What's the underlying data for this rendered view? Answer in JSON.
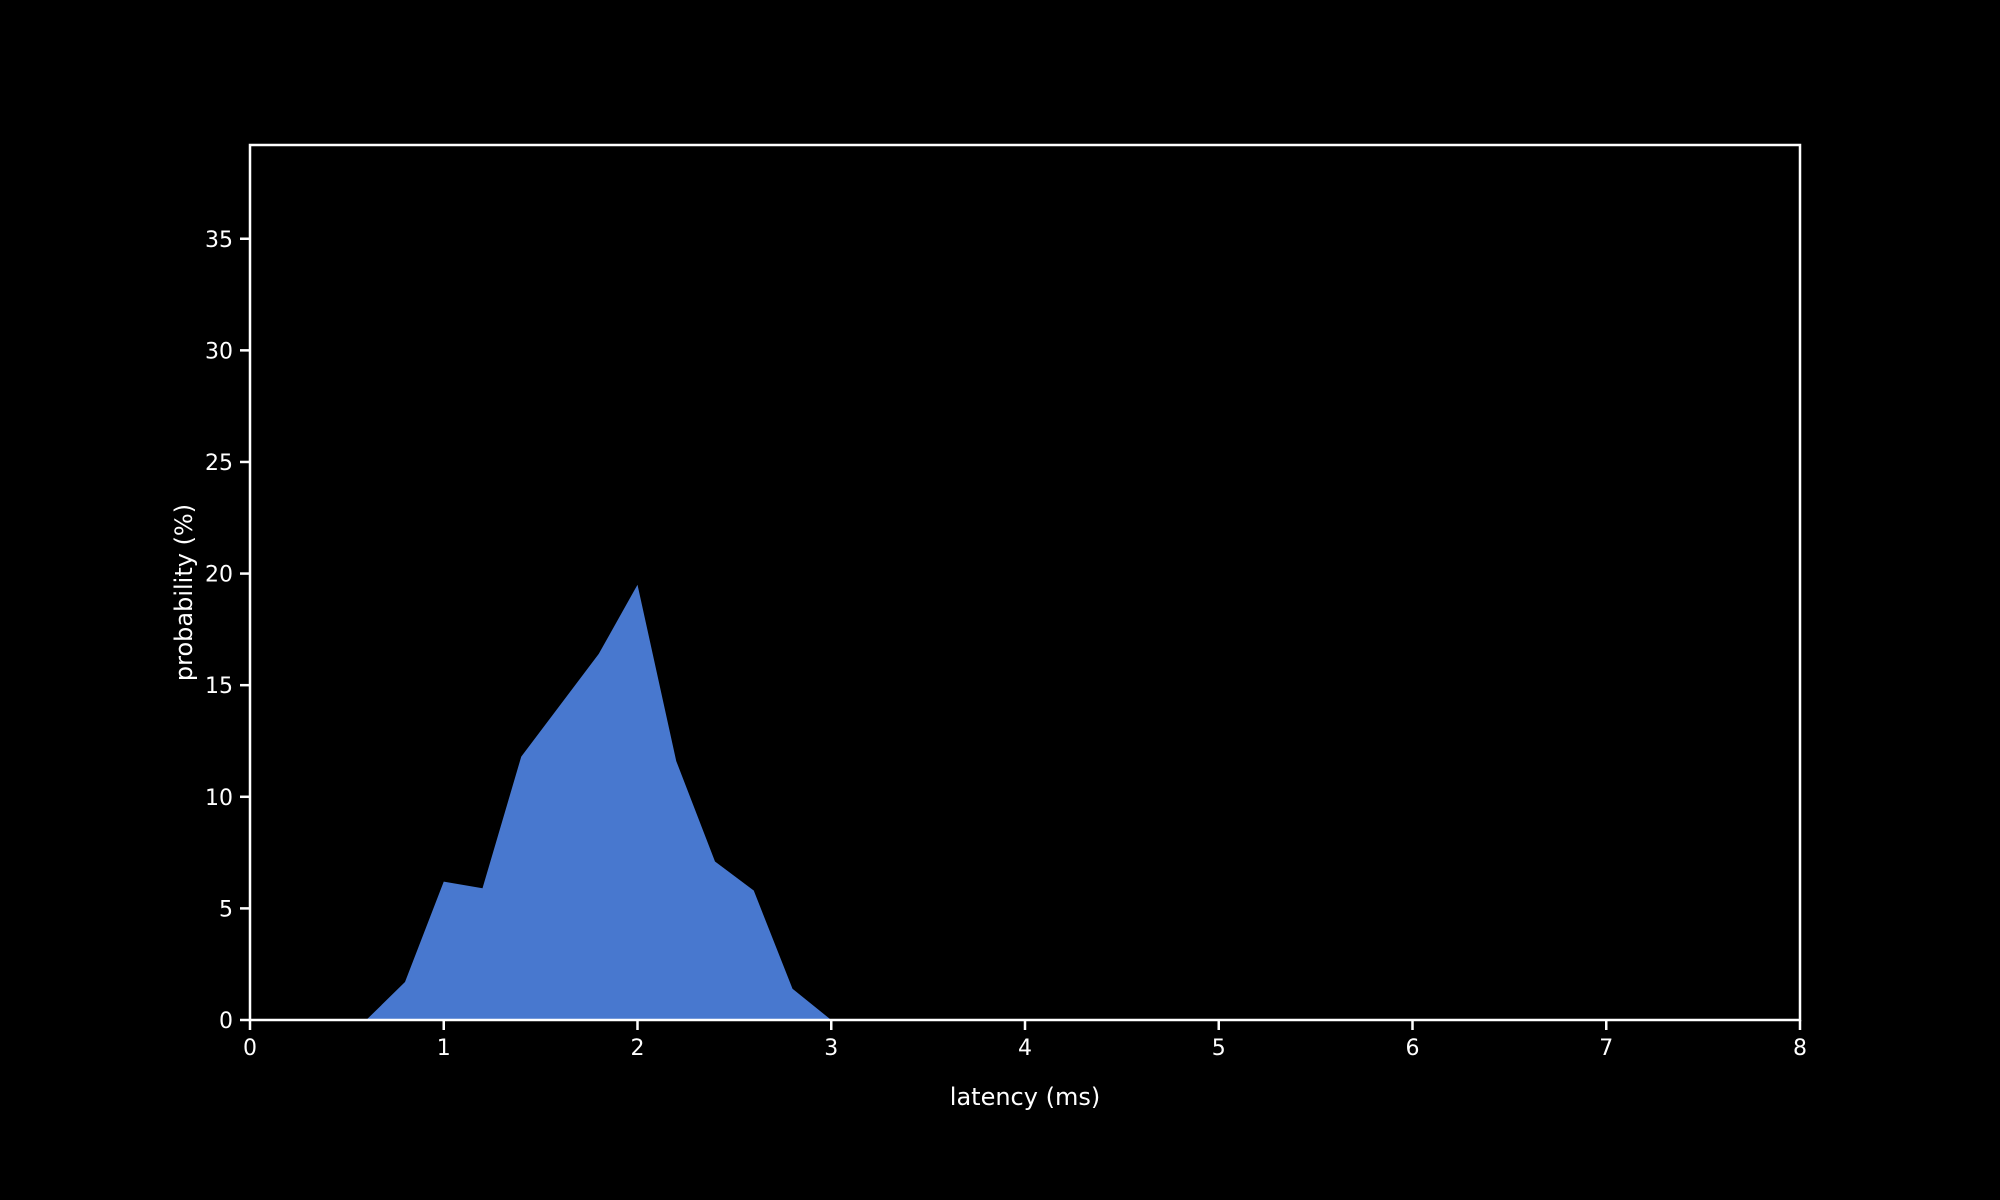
{
  "chart_data": {
    "type": "area",
    "xlabel": "latency (ms)",
    "ylabel": "probability (%)",
    "xlim": [
      0,
      8
    ],
    "ylim": [
      0,
      39.2
    ],
    "x_ticks": [
      0,
      1,
      2,
      3,
      4,
      5,
      6,
      7,
      8
    ],
    "y_ticks": [
      0,
      5,
      10,
      15,
      20,
      25,
      30,
      35
    ],
    "grid": false,
    "background_color": "#000000",
    "axis_color": "#ffffff",
    "series": [
      {
        "color": "#4878cf",
        "x": [
          0.6,
          0.8,
          1.0,
          1.2,
          1.4,
          1.6,
          1.8,
          2.0,
          2.2,
          2.4,
          2.6,
          2.8,
          3.0
        ],
        "y": [
          0.0,
          1.7,
          6.2,
          5.9,
          11.8,
          14.1,
          16.4,
          19.5,
          11.6,
          7.1,
          5.8,
          1.4,
          0.0
        ]
      }
    ]
  }
}
